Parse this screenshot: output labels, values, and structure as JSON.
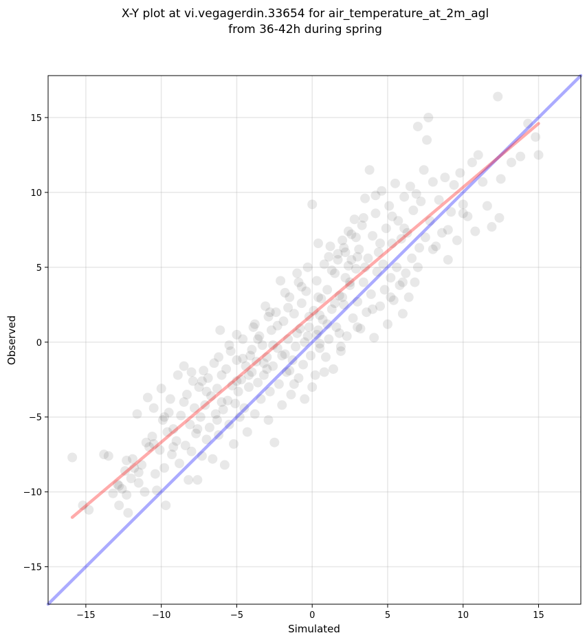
{
  "chart_data": {
    "type": "scatter",
    "title": "X-Y plot at vi.vegagerdin.33654 for air_temperature_at_2m_agl",
    "subtitle": "from 36-42h during spring",
    "xlabel": "Simulated",
    "ylabel": "Observed",
    "xlim": [
      -17.5,
      17.8
    ],
    "ylim": [
      -17.5,
      17.8
    ],
    "xticks": [
      -15,
      -10,
      -5,
      0,
      5,
      10,
      15
    ],
    "yticks": [
      -15,
      -10,
      -5,
      0,
      5,
      10,
      15
    ],
    "xtick_labels": [
      "−15",
      "−10",
      "−5",
      "0",
      "5",
      "10",
      "15"
    ],
    "ytick_labels": [
      "−15",
      "−10",
      "−5",
      "0",
      "5",
      "10",
      "15"
    ],
    "grid": true,
    "point_color": "#000000",
    "point_alpha": 0.09,
    "lines": [
      {
        "kind": "identity",
        "color": "#0000ff",
        "x": [
          -17.5,
          17.8
        ],
        "y": [
          -17.5,
          17.8
        ]
      },
      {
        "kind": "fit",
        "color": "#ff0000",
        "x": [
          -15.9,
          15.0
        ],
        "y": [
          -11.7,
          14.6
        ]
      }
    ],
    "points": [
      [
        -15.9,
        -7.7
      ],
      [
        -15.2,
        -10.9
      ],
      [
        -14.8,
        -11.2
      ],
      [
        -13.8,
        -7.5
      ],
      [
        -13.5,
        -7.6
      ],
      [
        -13.2,
        -10.1
      ],
      [
        -12.9,
        -9.5
      ],
      [
        -12.8,
        -10.9
      ],
      [
        -12.6,
        -9.8
      ],
      [
        -12.4,
        -8.6
      ],
      [
        -12.3,
        -10.2
      ],
      [
        -12.2,
        -11.4
      ],
      [
        -12.0,
        -9.1
      ],
      [
        -11.9,
        -7.8
      ],
      [
        -11.8,
        -8.4
      ],
      [
        -11.6,
        -4.8
      ],
      [
        -11.5,
        -9.4
      ],
      [
        -11.3,
        -8.2
      ],
      [
        -11.1,
        -10.0
      ],
      [
        -10.9,
        -3.7
      ],
      [
        -10.8,
        -7.0
      ],
      [
        -10.6,
        -6.3
      ],
      [
        -10.5,
        -4.4
      ],
      [
        -10.4,
        -8.8
      ],
      [
        -10.3,
        -9.9
      ],
      [
        -10.1,
        -7.2
      ],
      [
        -10.0,
        -3.1
      ],
      [
        -9.9,
        -5.2
      ],
      [
        -9.8,
        -8.4
      ],
      [
        -9.7,
        -10.9
      ],
      [
        -9.6,
        -6.0
      ],
      [
        -9.5,
        -4.7
      ],
      [
        -9.4,
        -3.8
      ],
      [
        -9.3,
        -7.5
      ],
      [
        -9.2,
        -5.8
      ],
      [
        -9.0,
        -6.6
      ],
      [
        -8.9,
        -2.2
      ],
      [
        -8.8,
        -8.1
      ],
      [
        -8.7,
        -4.9
      ],
      [
        -8.5,
        -1.6
      ],
      [
        -8.4,
        -6.9
      ],
      [
        -8.3,
        -3.5
      ],
      [
        -8.2,
        -9.2
      ],
      [
        -8.1,
        -5.5
      ],
      [
        -8.0,
        -7.3
      ],
      [
        -7.9,
        -2.6
      ],
      [
        -7.8,
        -4.4
      ],
      [
        -7.7,
        -6.1
      ],
      [
        -7.6,
        -9.2
      ],
      [
        -7.5,
        -3.0
      ],
      [
        -7.4,
        -5.0
      ],
      [
        -7.3,
        -7.6
      ],
      [
        -7.2,
        -1.9
      ],
      [
        -7.1,
        -4.2
      ],
      [
        -7.0,
        -6.5
      ],
      [
        -6.9,
        -2.4
      ],
      [
        -6.8,
        -5.7
      ],
      [
        -6.7,
        -3.6
      ],
      [
        -6.6,
        -7.8
      ],
      [
        -6.5,
        -1.4
      ],
      [
        -6.4,
        -4.8
      ],
      [
        -6.3,
        -3.1
      ],
      [
        -6.2,
        -6.2
      ],
      [
        -6.1,
        0.8
      ],
      [
        -6.0,
        -2.2
      ],
      [
        -5.9,
        -4.5
      ],
      [
        -5.8,
        -8.2
      ],
      [
        -5.7,
        -1.8
      ],
      [
        -5.6,
        -3.9
      ],
      [
        -5.5,
        -5.5
      ],
      [
        -5.4,
        -0.6
      ],
      [
        -5.3,
        -2.9
      ],
      [
        -5.2,
        -6.8
      ],
      [
        -5.1,
        -4.1
      ],
      [
        -5.0,
        -1.2
      ],
      [
        -4.9,
        -3.3
      ],
      [
        -4.8,
        -5.0
      ],
      [
        -4.7,
        -2.5
      ],
      [
        -4.6,
        0.2
      ],
      [
        -4.5,
        -4.4
      ],
      [
        -4.4,
        -1.6
      ],
      [
        -4.3,
        -6.0
      ],
      [
        -4.2,
        -3.0
      ],
      [
        -4.1,
        -0.9
      ],
      [
        -4.0,
        -2.0
      ],
      [
        -3.9,
        1.0
      ],
      [
        -3.8,
        -4.8
      ],
      [
        -3.7,
        -1.3
      ],
      [
        -3.6,
        -2.7
      ],
      [
        -3.5,
        0.4
      ],
      [
        -3.4,
        -3.8
      ],
      [
        -3.3,
        -0.2
      ],
      [
        -3.2,
        -2.2
      ],
      [
        -3.1,
        2.4
      ],
      [
        -3.0,
        -1.0
      ],
      [
        -2.9,
        -5.2
      ],
      [
        -2.8,
        -3.3
      ],
      [
        -2.7,
        0.8
      ],
      [
        -2.6,
        -1.6
      ],
      [
        -2.5,
        -6.7
      ],
      [
        -2.4,
        2.0
      ],
      [
        -2.3,
        -0.4
      ],
      [
        -2.2,
        -2.8
      ],
      [
        -2.1,
        4.1
      ],
      [
        -2.0,
        -4.2
      ],
      [
        -1.9,
        1.4
      ],
      [
        -1.8,
        -0.8
      ],
      [
        -1.7,
        -2.0
      ],
      [
        -1.6,
        0.2
      ],
      [
        -1.5,
        3.0
      ],
      [
        -1.4,
        -3.5
      ],
      [
        -1.3,
        -1.2
      ],
      [
        -1.2,
        1.9
      ],
      [
        -1.1,
        -0.3
      ],
      [
        -1.0,
        4.6
      ],
      [
        -0.9,
        -2.4
      ],
      [
        -0.8,
        0.9
      ],
      [
        -0.7,
        2.6
      ],
      [
        -0.6,
        -1.5
      ],
      [
        -0.5,
        -3.8
      ],
      [
        -0.4,
        3.4
      ],
      [
        -0.3,
        0.4
      ],
      [
        -0.2,
        1.7
      ],
      [
        -0.1,
        -0.9
      ],
      [
        0.0,
        9.2
      ],
      [
        0.1,
        2.1
      ],
      [
        0.2,
        -2.2
      ],
      [
        0.3,
        4.1
      ],
      [
        0.4,
        0.8
      ],
      [
        0.5,
        -0.4
      ],
      [
        0.6,
        2.9
      ],
      [
        0.7,
        1.5
      ],
      [
        0.8,
        5.2
      ],
      [
        0.9,
        -1.0
      ],
      [
        1.0,
        3.5
      ],
      [
        1.1,
        0.2
      ],
      [
        1.2,
        6.4
      ],
      [
        1.3,
        2.2
      ],
      [
        1.4,
        -1.8
      ],
      [
        1.5,
        4.6
      ],
      [
        1.6,
        1.0
      ],
      [
        1.7,
        5.9
      ],
      [
        1.8,
        3.1
      ],
      [
        1.9,
        -0.6
      ],
      [
        2.0,
        6.8
      ],
      [
        2.1,
        2.5
      ],
      [
        2.2,
        4.3
      ],
      [
        2.3,
        0.4
      ],
      [
        2.4,
        7.4
      ],
      [
        2.5,
        3.8
      ],
      [
        2.6,
        5.5
      ],
      [
        2.7,
        1.6
      ],
      [
        2.8,
        8.2
      ],
      [
        2.9,
        4.9
      ],
      [
        3.0,
        2.7
      ],
      [
        3.1,
        6.2
      ],
      [
        3.2,
        0.9
      ],
      [
        3.3,
        7.8
      ],
      [
        3.4,
        4.0
      ],
      [
        3.5,
        9.6
      ],
      [
        3.6,
        2.0
      ],
      [
        3.7,
        5.6
      ],
      [
        3.8,
        11.5
      ],
      [
        3.9,
        3.2
      ],
      [
        4.0,
        7.1
      ],
      [
        4.1,
        0.3
      ],
      [
        4.2,
        8.6
      ],
      [
        4.3,
        4.7
      ],
      [
        4.4,
        6.0
      ],
      [
        4.5,
        2.4
      ],
      [
        4.6,
        10.1
      ],
      [
        4.7,
        5.2
      ],
      [
        4.8,
        3.5
      ],
      [
        4.9,
        7.6
      ],
      [
        5.0,
        1.2
      ],
      [
        5.1,
        9.1
      ],
      [
        5.2,
        4.3
      ],
      [
        5.3,
        6.6
      ],
      [
        5.4,
        2.8
      ],
      [
        5.5,
        10.6
      ],
      [
        5.6,
        5.0
      ],
      [
        5.7,
        8.1
      ],
      [
        5.8,
        3.8
      ],
      [
        5.9,
        6.9
      ],
      [
        6.0,
        1.9
      ],
      [
        6.1,
        9.7
      ],
      [
        6.2,
        4.6
      ],
      [
        6.3,
        7.3
      ],
      [
        6.4,
        3.0
      ],
      [
        6.5,
        10.4
      ],
      [
        6.6,
        5.6
      ],
      [
        6.7,
        8.8
      ],
      [
        6.8,
        4.0
      ],
      [
        7.0,
        14.4
      ],
      [
        7.1,
        6.3
      ],
      [
        7.2,
        9.4
      ],
      [
        7.4,
        11.5
      ],
      [
        7.5,
        7.0
      ],
      [
        7.6,
        13.5
      ],
      [
        7.7,
        15.0
      ],
      [
        7.8,
        8.1
      ],
      [
        8.0,
        10.7
      ],
      [
        8.2,
        6.4
      ],
      [
        8.4,
        9.5
      ],
      [
        8.6,
        7.3
      ],
      [
        8.8,
        11.0
      ],
      [
        9.0,
        5.5
      ],
      [
        9.2,
        8.7
      ],
      [
        9.4,
        10.5
      ],
      [
        9.6,
        6.8
      ],
      [
        9.8,
        11.3
      ],
      [
        10.0,
        9.2
      ],
      [
        10.3,
        8.4
      ],
      [
        10.6,
        12.0
      ],
      [
        10.8,
        7.4
      ],
      [
        11.0,
        12.5
      ],
      [
        11.3,
        10.7
      ],
      [
        11.6,
        9.1
      ],
      [
        11.9,
        7.7
      ],
      [
        12.3,
        16.4
      ],
      [
        12.4,
        8.3
      ],
      [
        12.5,
        10.9
      ],
      [
        13.2,
        12.0
      ],
      [
        13.8,
        12.4
      ],
      [
        14.3,
        14.6
      ],
      [
        14.8,
        13.7
      ],
      [
        15.0,
        12.5
      ],
      [
        -8.0,
        -2.0
      ],
      [
        -7.0,
        -3.3
      ],
      [
        -6.0,
        -4.0
      ],
      [
        -5.0,
        -2.6
      ],
      [
        -4.0,
        -0.5
      ],
      [
        -3.0,
        -1.8
      ],
      [
        -2.0,
        -0.9
      ],
      [
        -1.0,
        0.6
      ],
      [
        0.5,
        1.8
      ],
      [
        1.5,
        2.6
      ],
      [
        2.5,
        4.0
      ],
      [
        3.5,
        5.0
      ],
      [
        4.5,
        6.6
      ],
      [
        -1.5,
        -1.9
      ],
      [
        -0.5,
        0.0
      ],
      [
        0.5,
        -0.1
      ],
      [
        1.0,
        1.2
      ],
      [
        1.8,
        0.6
      ],
      [
        2.2,
        6.0
      ],
      [
        2.6,
        7.2
      ],
      [
        3.0,
        5.7
      ],
      [
        0.3,
        0.5
      ],
      [
        -0.2,
        1.0
      ],
      [
        1.3,
        4.8
      ],
      [
        1.7,
        5.5
      ],
      [
        2.0,
        3.0
      ],
      [
        2.4,
        5.1
      ],
      [
        -2.6,
        -0.2
      ],
      [
        -3.2,
        -1.4
      ],
      [
        -4.2,
        -2.2
      ],
      [
        -6.3,
        -5.2
      ],
      [
        -7.6,
        -5.8
      ],
      [
        -9.2,
        -7.0
      ],
      [
        -10.5,
        -6.8
      ],
      [
        -11.5,
        -8.7
      ],
      [
        -12.8,
        -9.6
      ],
      [
        -2.3,
        1.1
      ],
      [
        -1.6,
        2.3
      ],
      [
        -0.7,
        3.7
      ],
      [
        0.4,
        3.0
      ],
      [
        1.1,
        5.7
      ],
      [
        2.1,
        6.3
      ],
      [
        2.9,
        7.0
      ],
      [
        3.4,
        8.3
      ],
      [
        4.2,
        9.8
      ],
      [
        5.3,
        8.4
      ],
      [
        6.1,
        7.6
      ],
      [
        6.9,
        9.9
      ],
      [
        -5.5,
        -0.2
      ],
      [
        -4.6,
        -1.1
      ],
      [
        -3.6,
        0.2
      ],
      [
        -2.9,
        1.7
      ],
      [
        -1.2,
        -2.8
      ],
      [
        0.0,
        -3.0
      ],
      [
        0.8,
        -2.0
      ],
      [
        1.9,
        -0.3
      ],
      [
        3.0,
        1.0
      ],
      [
        4.0,
        2.2
      ],
      [
        5.2,
        3.0
      ],
      [
        6.0,
        4.0
      ],
      [
        7.0,
        5.0
      ],
      [
        8.0,
        6.2
      ],
      [
        9.0,
        7.5
      ],
      [
        10.0,
        8.6
      ],
      [
        -0.9,
        4.0
      ],
      [
        -0.3,
        5.0
      ],
      [
        0.4,
        6.6
      ],
      [
        -1.8,
        3.3
      ],
      [
        -2.8,
        2.0
      ],
      [
        -3.8,
        1.2
      ],
      [
        -5.0,
        0.5
      ],
      [
        -6.2,
        -1.0
      ],
      [
        -7.3,
        -2.6
      ],
      [
        -8.5,
        -4.0
      ],
      [
        -9.8,
        -5.0
      ],
      [
        -11.0,
        -6.7
      ],
      [
        -12.3,
        -7.9
      ]
    ]
  }
}
